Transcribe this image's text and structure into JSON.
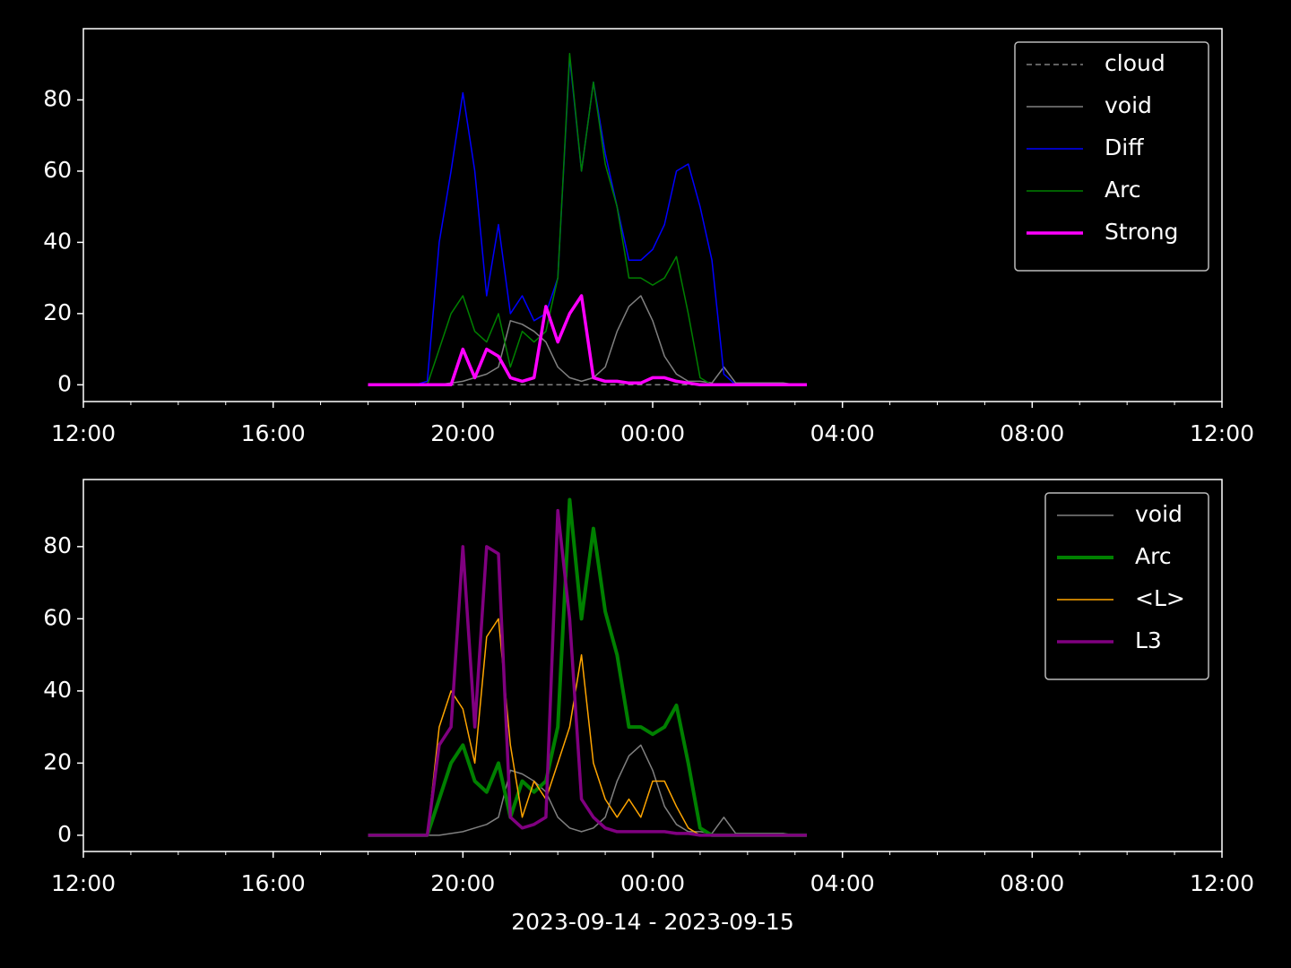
{
  "chart_data": [
    {
      "type": "line",
      "x": [
        "2023-09-14T18:00",
        "2023-09-14T18:15",
        "2023-09-14T18:30",
        "2023-09-14T18:45",
        "2023-09-14T19:00",
        "2023-09-14T19:15",
        "2023-09-14T19:30",
        "2023-09-14T19:45",
        "2023-09-14T20:00",
        "2023-09-14T20:15",
        "2023-09-14T20:30",
        "2023-09-14T20:45",
        "2023-09-14T21:00",
        "2023-09-14T21:15",
        "2023-09-14T21:30",
        "2023-09-14T21:45",
        "2023-09-14T22:00",
        "2023-09-14T22:15",
        "2023-09-14T22:30",
        "2023-09-14T22:45",
        "2023-09-14T23:00",
        "2023-09-14T23:15",
        "2023-09-14T23:30",
        "2023-09-14T23:45",
        "2023-09-15T00:00",
        "2023-09-15T00:15",
        "2023-09-15T00:30",
        "2023-09-15T00:45",
        "2023-09-15T01:00",
        "2023-09-15T01:15",
        "2023-09-15T01:30",
        "2023-09-15T01:45",
        "2023-09-15T02:00",
        "2023-09-15T02:15",
        "2023-09-15T02:30",
        "2023-09-15T02:45",
        "2023-09-15T03:00",
        "2023-09-15T03:15"
      ],
      "series": [
        {
          "name": "cloud",
          "color": "#808080",
          "width": 1.5,
          "dash": true,
          "values": [
            0,
            0,
            0,
            0,
            0,
            0,
            0,
            0,
            0,
            0,
            0,
            0,
            0,
            0,
            0,
            0,
            0,
            0,
            0,
            0,
            0,
            0,
            0,
            0,
            0,
            0,
            0,
            0,
            0,
            0,
            0,
            0,
            0,
            0,
            0,
            0,
            0,
            0
          ]
        },
        {
          "name": "void",
          "color": "#808080",
          "width": 1.5,
          "values": [
            0,
            0,
            0,
            0,
            0,
            0,
            0,
            0.5,
            1,
            2,
            3,
            5,
            18,
            17,
            15,
            12,
            5,
            2,
            1,
            2,
            5,
            15,
            22,
            25,
            18,
            8,
            3,
            1,
            1,
            0.5,
            5,
            0.5,
            0.5,
            0.5,
            0.5,
            0.5,
            0,
            0
          ]
        },
        {
          "name": "Diff",
          "color": "#0000ff",
          "width": 1.5,
          "values": [
            0,
            0,
            0,
            0,
            0,
            1,
            40,
            60,
            82,
            60,
            25,
            45,
            20,
            25,
            18,
            20,
            30,
            92,
            60,
            85,
            65,
            50,
            35,
            35,
            38,
            45,
            60,
            62,
            50,
            35,
            3,
            0,
            0,
            0,
            0,
            0,
            0,
            0
          ]
        },
        {
          "name": "Arc",
          "color": "#008000",
          "width": 1.5,
          "values": [
            0,
            0,
            0,
            0,
            0,
            0,
            10,
            20,
            25,
            15,
            12,
            20,
            5,
            15,
            12,
            15,
            30,
            93,
            60,
            85,
            62,
            50,
            30,
            30,
            28,
            30,
            36,
            20,
            2,
            0,
            0,
            0,
            0,
            0,
            0,
            0,
            0,
            0
          ]
        },
        {
          "name": "Strong",
          "color": "#ff00ff",
          "width": 3.5,
          "values": [
            0,
            0,
            0,
            0,
            0,
            0,
            0,
            0,
            10,
            2,
            10,
            8,
            2,
            1,
            2,
            22,
            12,
            20,
            25,
            2,
            1,
            1,
            0.5,
            0.5,
            2,
            2,
            1,
            0.5,
            0,
            0,
            0,
            0,
            0,
            0,
            0,
            0,
            0,
            0
          ]
        }
      ],
      "xlim": [
        "2023-09-14T12:00",
        "2023-09-15T12:00"
      ],
      "xticks": [
        {
          "value": "2023-09-14T12:00",
          "label": "12:00"
        },
        {
          "value": "2023-09-14T16:00",
          "label": "16:00"
        },
        {
          "value": "2023-09-14T20:00",
          "label": "20:00"
        },
        {
          "value": "2023-09-15T00:00",
          "label": "00:00"
        },
        {
          "value": "2023-09-15T04:00",
          "label": "04:00"
        },
        {
          "value": "2023-09-15T08:00",
          "label": "08:00"
        },
        {
          "value": "2023-09-15T12:00",
          "label": "12:00"
        }
      ],
      "ylim": [
        -4.7,
        100
      ],
      "yticks": [
        0,
        20,
        40,
        60,
        80
      ],
      "legend": "upper right"
    },
    {
      "type": "line",
      "x": [
        "2023-09-14T18:00",
        "2023-09-14T18:15",
        "2023-09-14T18:30",
        "2023-09-14T18:45",
        "2023-09-14T19:00",
        "2023-09-14T19:15",
        "2023-09-14T19:30",
        "2023-09-14T19:45",
        "2023-09-14T20:00",
        "2023-09-14T20:15",
        "2023-09-14T20:30",
        "2023-09-14T20:45",
        "2023-09-14T21:00",
        "2023-09-14T21:15",
        "2023-09-14T21:30",
        "2023-09-14T21:45",
        "2023-09-14T22:00",
        "2023-09-14T22:15",
        "2023-09-14T22:30",
        "2023-09-14T22:45",
        "2023-09-14T23:00",
        "2023-09-14T23:15",
        "2023-09-14T23:30",
        "2023-09-14T23:45",
        "2023-09-15T00:00",
        "2023-09-15T00:15",
        "2023-09-15T00:30",
        "2023-09-15T00:45",
        "2023-09-15T01:00",
        "2023-09-15T01:15",
        "2023-09-15T01:30",
        "2023-09-15T01:45",
        "2023-09-15T02:00",
        "2023-09-15T02:15",
        "2023-09-15T02:30",
        "2023-09-15T02:45",
        "2023-09-15T03:00",
        "2023-09-15T03:15"
      ],
      "series": [
        {
          "name": "void",
          "color": "#808080",
          "width": 1.5,
          "values": [
            0,
            0,
            0,
            0,
            0,
            0,
            0,
            0.5,
            1,
            2,
            3,
            5,
            18,
            17,
            15,
            12,
            5,
            2,
            1,
            2,
            5,
            15,
            22,
            25,
            18,
            8,
            3,
            1,
            1,
            0.5,
            5,
            0.5,
            0.5,
            0.5,
            0.5,
            0.5,
            0,
            0
          ]
        },
        {
          "name": "Arc",
          "color": "#008000",
          "width": 4,
          "values": [
            0,
            0,
            0,
            0,
            0,
            0,
            10,
            20,
            25,
            15,
            12,
            20,
            5,
            15,
            12,
            15,
            30,
            93,
            60,
            85,
            62,
            50,
            30,
            30,
            28,
            30,
            36,
            20,
            2,
            0,
            0,
            0,
            0,
            0,
            0,
            0,
            0,
            0
          ]
        },
        {
          "name": "<L>",
          "color": "#ffa500",
          "width": 1.5,
          "values": [
            0,
            0,
            0,
            0,
            0,
            0,
            30,
            40,
            35,
            20,
            55,
            60,
            25,
            5,
            15,
            10,
            20,
            30,
            50,
            20,
            10,
            5,
            10,
            5,
            15,
            15,
            8,
            2,
            0,
            0,
            0,
            0,
            0,
            0,
            0,
            0,
            0,
            0
          ]
        },
        {
          "name": "L3",
          "color": "#800080",
          "width": 3.5,
          "values": [
            0,
            0,
            0,
            0,
            0,
            0,
            25,
            30,
            80,
            30,
            80,
            78,
            5,
            2,
            3,
            5,
            90,
            60,
            10,
            5,
            2,
            1,
            1,
            1,
            1,
            1,
            0.5,
            0.5,
            0,
            0,
            0,
            0,
            0,
            0,
            0,
            0,
            0,
            0
          ]
        }
      ],
      "xlim": [
        "2023-09-14T12:00",
        "2023-09-15T12:00"
      ],
      "xticks": [
        {
          "value": "2023-09-14T12:00",
          "label": "12:00"
        },
        {
          "value": "2023-09-14T16:00",
          "label": "16:00"
        },
        {
          "value": "2023-09-14T20:00",
          "label": "20:00"
        },
        {
          "value": "2023-09-15T00:00",
          "label": "00:00"
        },
        {
          "value": "2023-09-15T04:00",
          "label": "04:00"
        },
        {
          "value": "2023-09-15T08:00",
          "label": "08:00"
        },
        {
          "value": "2023-09-15T12:00",
          "label": "12:00"
        }
      ],
      "ylim": [
        -4.5,
        98.6
      ],
      "yticks": [
        0,
        20,
        40,
        60,
        80
      ],
      "legend": "upper right",
      "x_label": "2023-09-14 - 2023-09-15"
    }
  ]
}
